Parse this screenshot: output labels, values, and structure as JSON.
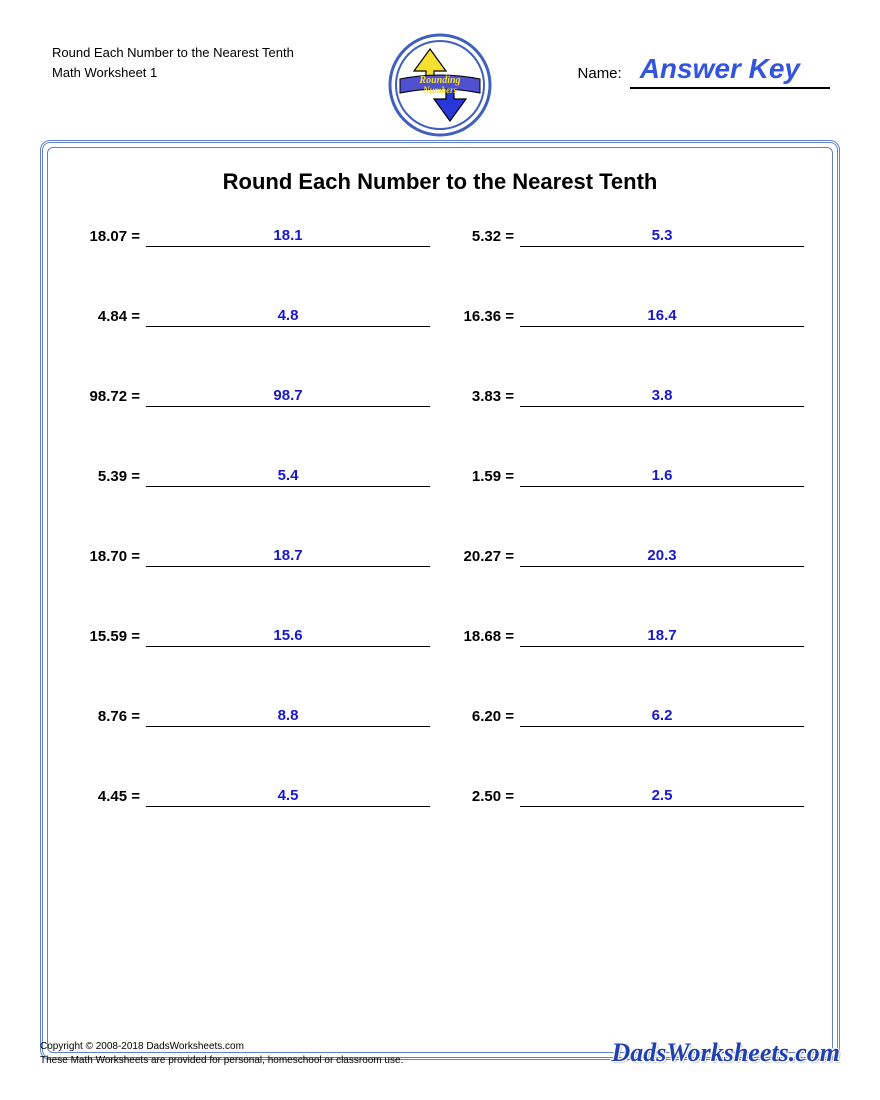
{
  "header": {
    "title_line1": "Round Each Number to the Nearest Tenth",
    "title_line2": "Math Worksheet 1",
    "name_label": "Name:",
    "answer_key": "Answer Key"
  },
  "logo": {
    "text_top": "Rounding",
    "text_bottom": "Numbers",
    "arrow_up_color": "#f5e030",
    "arrow_down_color": "#2838d8",
    "ring_color": "#4060c0",
    "banner_color": "#5050d0",
    "banner_text_color": "#f5e030"
  },
  "worksheet": {
    "title": "Round Each Number to the Nearest Tenth",
    "border_color": "#6080d0",
    "answer_color": "#1818cc",
    "prompt_color": "#000000",
    "problems": [
      {
        "prompt": "18.07",
        "answer": "18.1"
      },
      {
        "prompt": "5.32",
        "answer": "5.3"
      },
      {
        "prompt": "4.84",
        "answer": "4.8"
      },
      {
        "prompt": "16.36",
        "answer": "16.4"
      },
      {
        "prompt": "98.72",
        "answer": "98.7"
      },
      {
        "prompt": "3.83",
        "answer": "3.8"
      },
      {
        "prompt": "5.39",
        "answer": "5.4"
      },
      {
        "prompt": "1.59",
        "answer": "1.6"
      },
      {
        "prompt": "18.70",
        "answer": "18.7"
      },
      {
        "prompt": "20.27",
        "answer": "20.3"
      },
      {
        "prompt": "15.59",
        "answer": "15.6"
      },
      {
        "prompt": "18.68",
        "answer": "18.7"
      },
      {
        "prompt": "8.76",
        "answer": "8.8"
      },
      {
        "prompt": "6.20",
        "answer": "6.2"
      },
      {
        "prompt": "4.45",
        "answer": "4.5"
      },
      {
        "prompt": "2.50",
        "answer": "2.5"
      }
    ]
  },
  "footer": {
    "copyright": "Copyright © 2008-2018 DadsWorksheets.com",
    "usage": "These Math Worksheets are provided for personal, homeschool or classroom use.",
    "brand": "DadsWorksheets.com"
  }
}
